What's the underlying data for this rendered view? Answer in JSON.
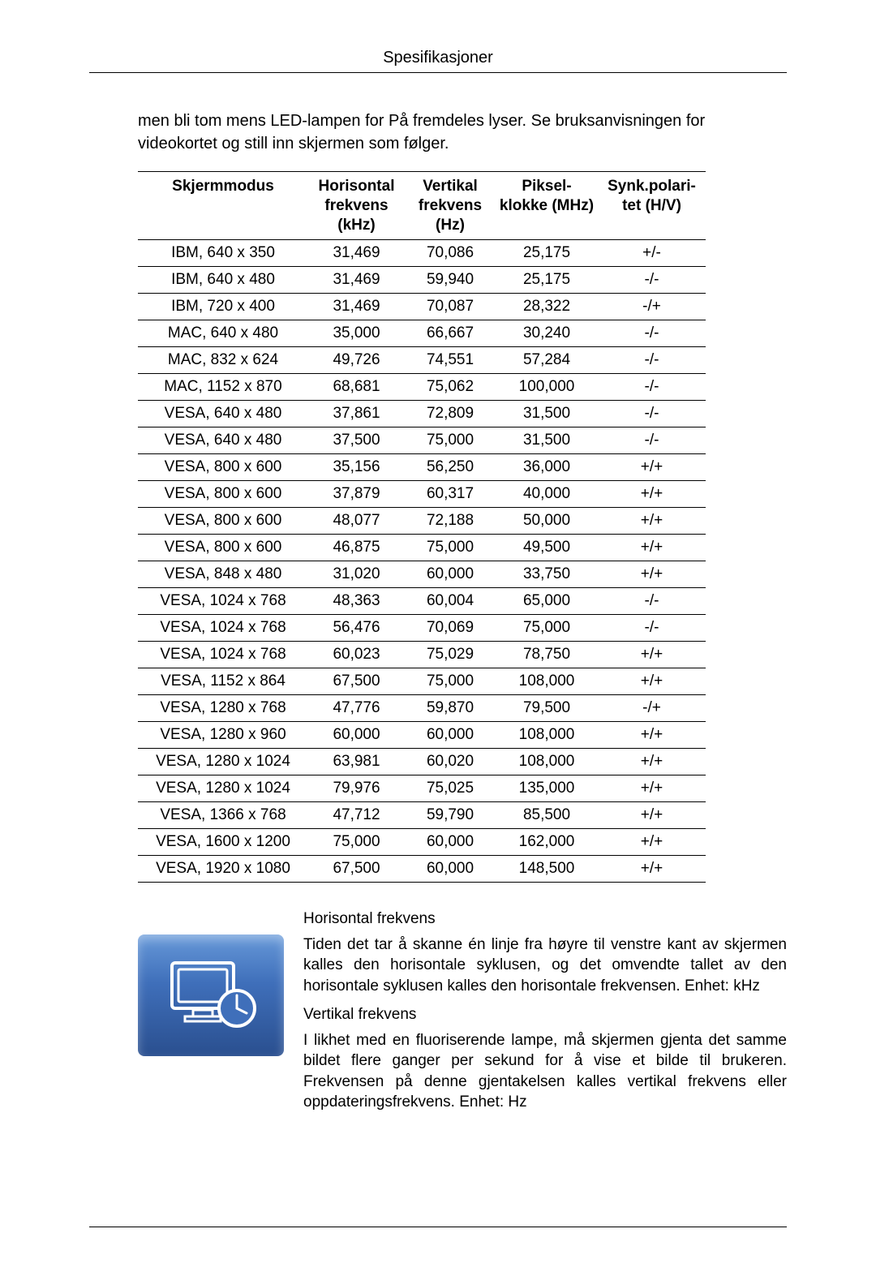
{
  "header": {
    "title": "Spesifikasjoner"
  },
  "intro": "men bli tom mens LED-lampen for På fremdeles lyser. Se bruksanvisningen for videokortet og still inn skjermen som følger.",
  "table": {
    "columns": [
      "Skjermmodus",
      "Horisontal frekvens (kHz)",
      "Vertikal frekvens (Hz)",
      "Piksel-klokke (MHz)",
      "Synk.polari-tet (H/V)"
    ],
    "column_widths_pct": [
      30,
      17,
      16,
      18,
      19
    ],
    "header_fontsize": 19,
    "cell_fontsize": 19,
    "border_color": "#000000",
    "rows": [
      [
        "IBM, 640 x 350",
        "31,469",
        "70,086",
        "25,175",
        "+/-"
      ],
      [
        "IBM, 640 x 480",
        "31,469",
        "59,940",
        "25,175",
        "-/-"
      ],
      [
        "IBM, 720 x 400",
        "31,469",
        "70,087",
        "28,322",
        "-/+"
      ],
      [
        "MAC, 640 x 480",
        "35,000",
        "66,667",
        "30,240",
        "-/-"
      ],
      [
        "MAC, 832 x 624",
        "49,726",
        "74,551",
        "57,284",
        "-/-"
      ],
      [
        "MAC, 1152 x 870",
        "68,681",
        "75,062",
        "100,000",
        "-/-"
      ],
      [
        "VESA, 640 x 480",
        "37,861",
        "72,809",
        "31,500",
        "-/-"
      ],
      [
        "VESA, 640 x 480",
        "37,500",
        "75,000",
        "31,500",
        "-/-"
      ],
      [
        "VESA, 800 x 600",
        "35,156",
        "56,250",
        "36,000",
        "+/+"
      ],
      [
        "VESA, 800 x 600",
        "37,879",
        "60,317",
        "40,000",
        "+/+"
      ],
      [
        "VESA, 800 x 600",
        "48,077",
        "72,188",
        "50,000",
        "+/+"
      ],
      [
        "VESA, 800 x 600",
        "46,875",
        "75,000",
        "49,500",
        "+/+"
      ],
      [
        "VESA, 848 x 480",
        "31,020",
        "60,000",
        "33,750",
        "+/+"
      ],
      [
        "VESA, 1024 x 768",
        "48,363",
        "60,004",
        "65,000",
        "-/-"
      ],
      [
        "VESA, 1024 x 768",
        "56,476",
        "70,069",
        "75,000",
        "-/-"
      ],
      [
        "VESA, 1024 x 768",
        "60,023",
        "75,029",
        "78,750",
        "+/+"
      ],
      [
        "VESA, 1152 x 864",
        "67,500",
        "75,000",
        "108,000",
        "+/+"
      ],
      [
        "VESA, 1280 x 768",
        "47,776",
        "59,870",
        "79,500",
        "-/+"
      ],
      [
        "VESA, 1280 x 960",
        "60,000",
        "60,000",
        "108,000",
        "+/+"
      ],
      [
        "VESA, 1280 x 1024",
        "63,981",
        "60,020",
        "108,000",
        "+/+"
      ],
      [
        "VESA, 1280 x 1024",
        "79,976",
        "75,025",
        "135,000",
        "+/+"
      ],
      [
        "VESA, 1366 x 768",
        "47,712",
        "59,790",
        "85,500",
        "+/+"
      ],
      [
        "VESA, 1600 x 1200",
        "75,000",
        "60,000",
        "162,000",
        "+/+"
      ],
      [
        "VESA, 1920 x 1080",
        "67,500",
        "60,000",
        "148,500",
        "+/+"
      ]
    ]
  },
  "info": {
    "icon": {
      "name": "monitor-clock-icon",
      "bg_gradient_from": "#6799d9",
      "bg_gradient_mid": "#3f6fba",
      "bg_gradient_to": "#2a4f8f",
      "stroke": "#ffffff"
    },
    "h_title": "Horisontal frekvens",
    "h_body": "Tiden det tar å skanne én linje fra høyre til venstre kant av skjermen kalles den horisontale syklusen, og det omvendte tallet av den horisontale syklusen kalles den horisontale frekvensen. Enhet: kHz",
    "v_title": "Vertikal frekvens",
    "v_body": "I likhet med en fluoriserende lampe, må skjermen gjenta det samme bildet flere ganger per sekund for å vise et bilde til brukeren. Frekvensen på denne gjentakelsen kalles vertikal frekvens eller oppdateringsfrekvens. Enhet: Hz"
  },
  "typography": {
    "font_family": "Arial",
    "body_fontsize": 20,
    "text_color": "#000000",
    "background_color": "#ffffff"
  }
}
